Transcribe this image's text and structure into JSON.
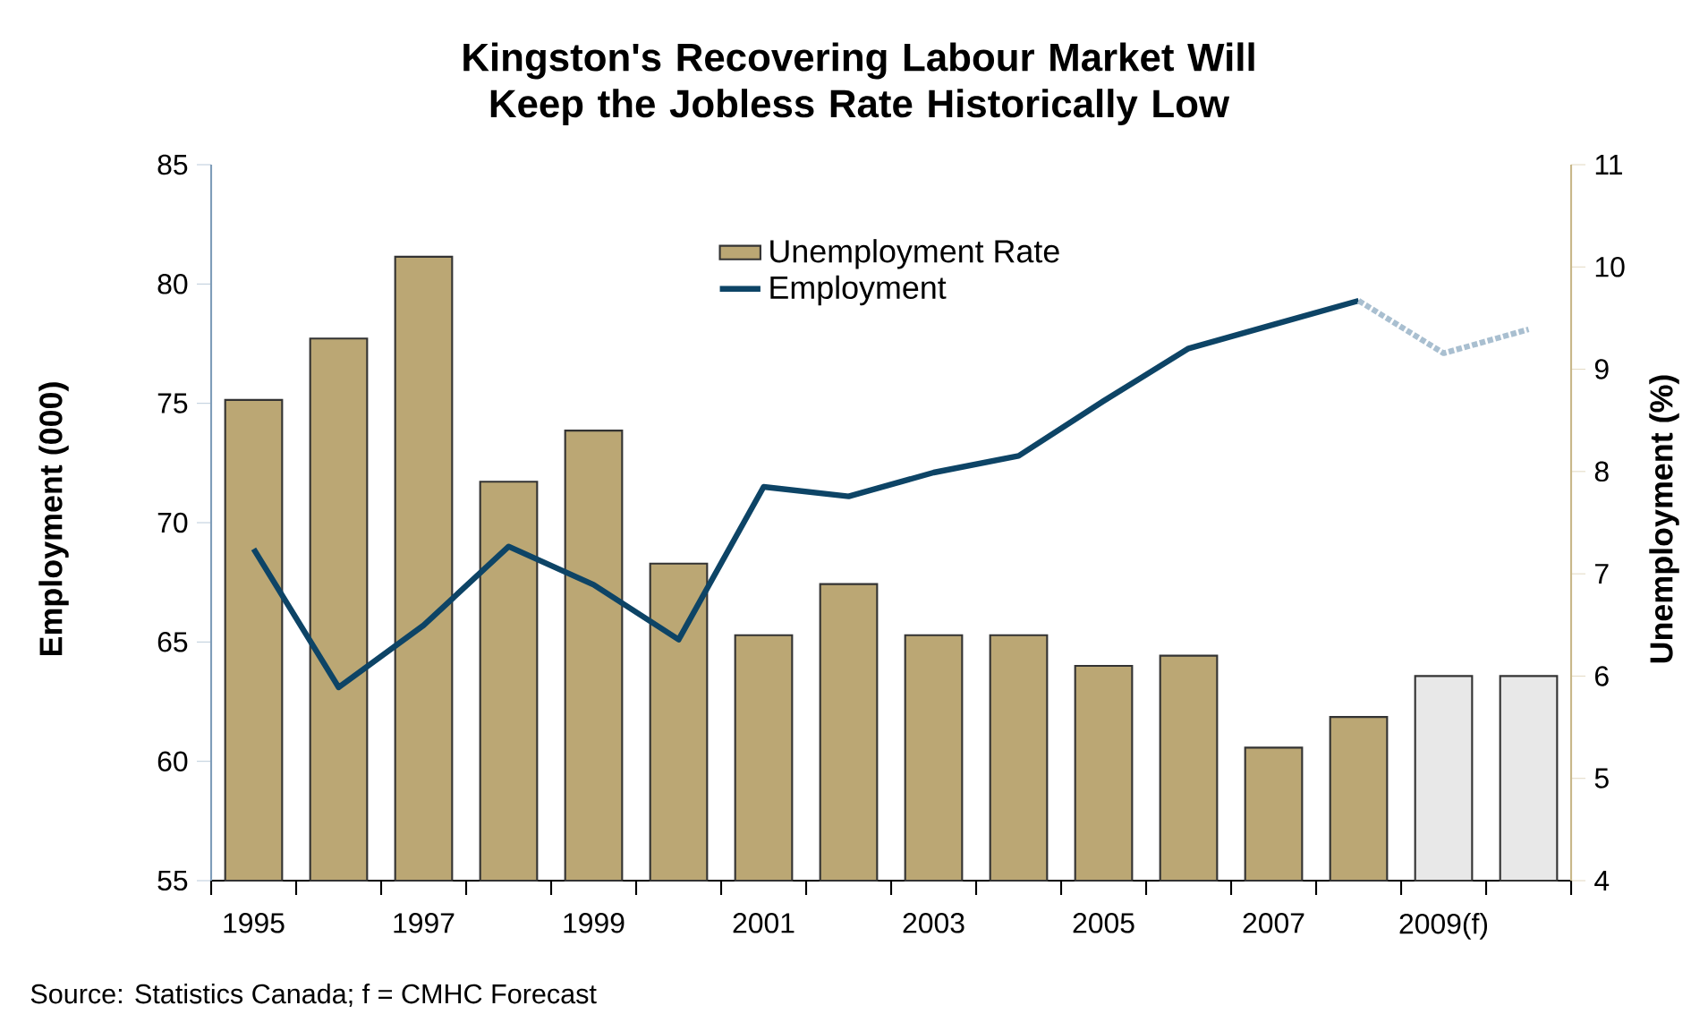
{
  "chart_data": {
    "type": "bar",
    "title": "Kingston's Recovering Labour Market Will Keep the Jobless Rate Historically Low",
    "categories": [
      "1995",
      null,
      "1997",
      null,
      "1999",
      null,
      "2001",
      null,
      "2003",
      null,
      "2005",
      null,
      "2007",
      null,
      "2009(f)",
      null
    ],
    "series": [
      {
        "name": "Unemployment Rate",
        "axis": "y2",
        "values": [
          8.7,
          9.3,
          10.1,
          7.9,
          8.4,
          7.1,
          6.4,
          6.9,
          6.4,
          6.4,
          6.1,
          6.2,
          5.3,
          5.6,
          6.0,
          6.0
        ],
        "colors": [
          "#bba774",
          "#bba774",
          "#bba774",
          "#bba774",
          "#bba774",
          "#bba774",
          "#bba774",
          "#bba774",
          "#bba774",
          "#bba774",
          "#bba774",
          "#bba774",
          "#bba774",
          "#bba774",
          "#e8e8e8",
          "#e8e8e8"
        ]
      },
      {
        "name": "Employment",
        "type": "line",
        "color": "#0d4466",
        "values": [
          68.9,
          63.1,
          65.7,
          69.0,
          67.4,
          65.1,
          71.5,
          71.1,
          72.1,
          72.8,
          75.1,
          77.3,
          78.3,
          79.3,
          null,
          null
        ]
      },
      {
        "type": "line",
        "color": "#a9bfd0",
        "line_style": "dotted",
        "values": [
          null,
          null,
          null,
          null,
          null,
          null,
          null,
          null,
          null,
          null,
          null,
          null,
          null,
          79.3,
          77.1,
          78.1
        ]
      }
    ],
    "ylabel": "Employment (000)",
    "y2label": "Unemployment (%)",
    "ylim": [
      55,
      85
    ],
    "yticks": [
      55,
      60,
      65,
      70,
      75,
      80,
      85
    ],
    "y2lim": [
      4,
      11
    ],
    "y2ticks": [
      4,
      5,
      6,
      7,
      8,
      9,
      10,
      11
    ],
    "legend": "top",
    "annotations": [
      "Source: Statistics Canada; f = CMHC Forecast"
    ]
  }
}
